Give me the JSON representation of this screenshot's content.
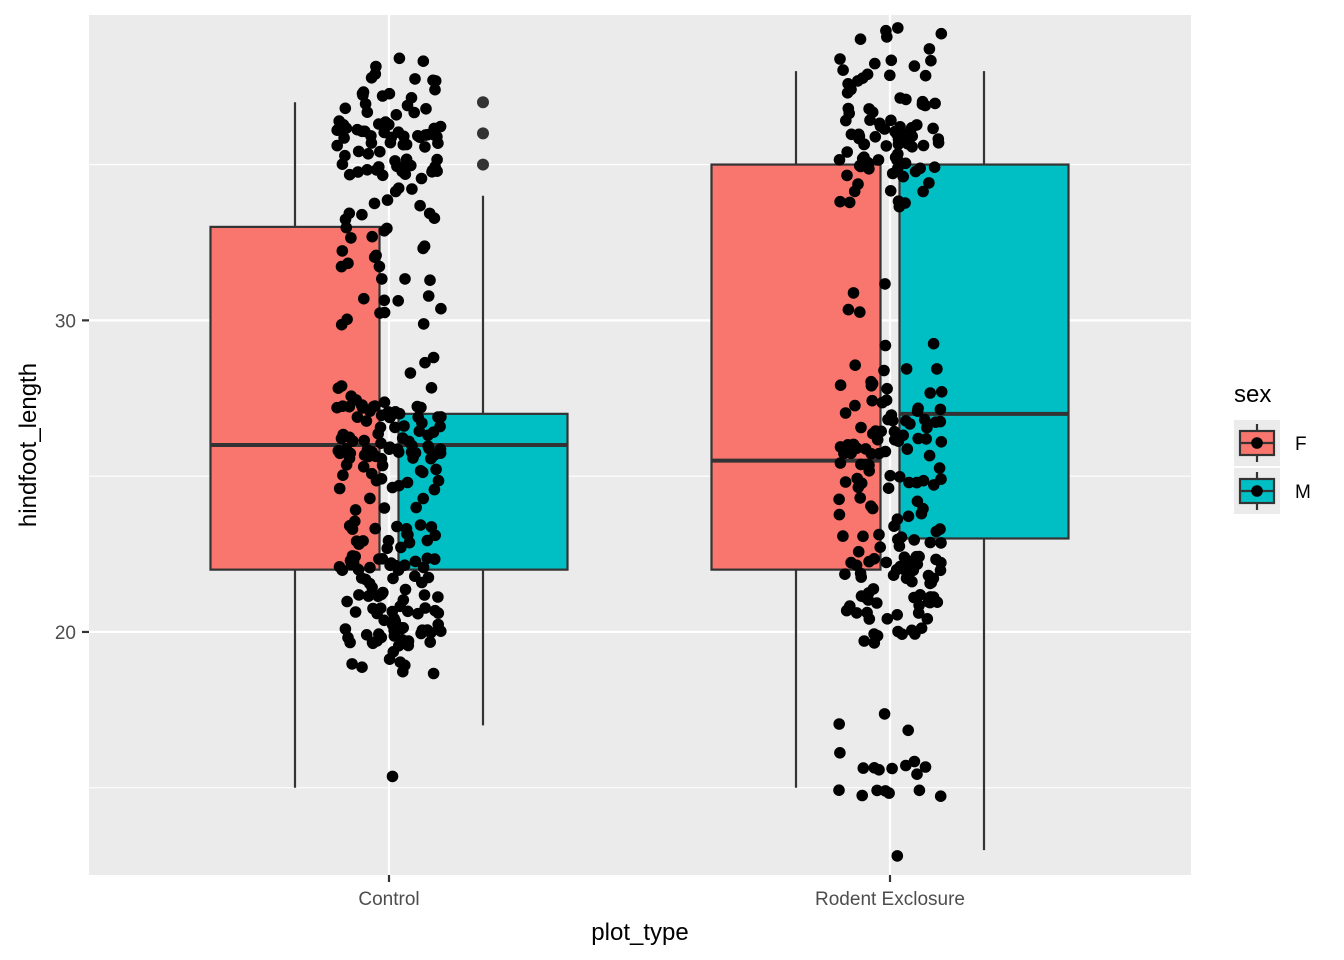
{
  "chart_data": {
    "type": "boxplot",
    "xlabel": "plot_type",
    "ylabel": "hindfoot_length",
    "categories": [
      "Control",
      "Rodent Exclosure"
    ],
    "ylim": [
      12.2,
      39.8
    ],
    "y_ticks": [
      20,
      30
    ],
    "y_tick_labels": [
      "20",
      "30"
    ],
    "grid": true,
    "legend": {
      "title": "sex",
      "position": "right",
      "entries": [
        "F",
        "M"
      ]
    },
    "colors": {
      "F": "#F8766D",
      "M": "#00BFC4",
      "panel": "#EBEBEB",
      "grid": "#FFFFFF",
      "points": "#000000",
      "box_outline": "#333333"
    },
    "series": [
      {
        "name": "F",
        "boxes": [
          {
            "category": "Control",
            "min": 15,
            "q1": 22,
            "median": 26,
            "q3": 33,
            "max": 37,
            "outliers": []
          },
          {
            "category": "Rodent Exclosure",
            "min": 15,
            "q1": 22,
            "median": 25.5,
            "q3": 35,
            "max": 38,
            "outliers": []
          }
        ]
      },
      {
        "name": "M",
        "boxes": [
          {
            "category": "Control",
            "min": 17,
            "q1": 22,
            "median": 26,
            "q3": 27,
            "max": 34,
            "outliers": [
              35,
              36,
              37
            ]
          },
          {
            "category": "Rodent Exclosure",
            "min": 13,
            "q1": 23,
            "median": 27,
            "q3": 35,
            "max": 38,
            "outliers": []
          }
        ]
      }
    ],
    "jitter_points": [
      {
        "category": "Control",
        "y_distribution": [
          [
            15,
            1
          ],
          [
            19,
            8
          ],
          [
            20,
            30
          ],
          [
            21,
            22
          ],
          [
            22,
            28
          ],
          [
            23,
            18
          ],
          [
            24,
            6
          ],
          [
            25,
            16
          ],
          [
            26,
            38
          ],
          [
            27,
            30
          ],
          [
            28,
            5
          ],
          [
            29,
            2
          ],
          [
            30,
            6
          ],
          [
            31,
            7
          ],
          [
            32,
            8
          ],
          [
            33,
            10
          ],
          [
            34,
            6
          ],
          [
            35,
            24
          ],
          [
            36,
            32
          ],
          [
            37,
            14
          ],
          [
            38,
            8
          ]
        ]
      },
      {
        "category": "Rodent Exclosure",
        "y_distribution": [
          [
            13,
            1
          ],
          [
            15,
            8
          ],
          [
            16,
            8
          ],
          [
            17,
            3
          ],
          [
            20,
            12
          ],
          [
            21,
            20
          ],
          [
            22,
            30
          ],
          [
            23,
            14
          ],
          [
            24,
            10
          ],
          [
            25,
            18
          ],
          [
            26,
            24
          ],
          [
            27,
            18
          ],
          [
            28,
            10
          ],
          [
            29,
            3
          ],
          [
            30,
            2
          ],
          [
            31,
            2
          ],
          [
            34,
            10
          ],
          [
            35,
            22
          ],
          [
            36,
            30
          ],
          [
            37,
            12
          ],
          [
            38,
            12
          ],
          [
            39,
            6
          ]
        ]
      }
    ]
  }
}
